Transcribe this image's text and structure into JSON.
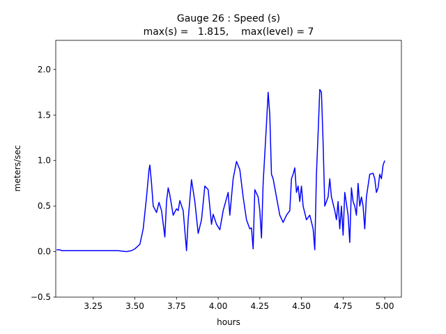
{
  "chart_data": {
    "type": "line",
    "title": "Gauge 26 : Speed (s)",
    "subtitle": "max(s) =   1.815,    max(level) = 7",
    "xlabel": "hours",
    "ylabel": "meters/sec",
    "xlim": [
      3.025,
      5.1
    ],
    "ylim": [
      -0.5,
      2.32
    ],
    "xticks": [
      3.25,
      {
        "value": 3.5,
        "label": "3.50"
      },
      3.75,
      {
        "value": 4,
        "label": "4.00"
      },
      4.25,
      {
        "value": 4.5,
        "label": "4.50"
      },
      4.75,
      {
        "value": 5,
        "label": "5.00"
      }
    ],
    "yticks": [
      {
        "value": -0.5,
        "label": "−0.5"
      },
      {
        "value": 0,
        "label": "0.0"
      },
      0.5,
      {
        "value": 1,
        "label": "1.0"
      },
      1.5,
      {
        "value": 2,
        "label": "2.0"
      }
    ],
    "grid": false,
    "series": [
      {
        "color": "#0000ff",
        "x": [
          3.03,
          3.05,
          3.06,
          3.1,
          3.15,
          3.2,
          3.25,
          3.3,
          3.35,
          3.4,
          3.45,
          3.48,
          3.5,
          3.53,
          3.55,
          3.57,
          3.585,
          3.59,
          3.6,
          3.61,
          3.63,
          3.645,
          3.66,
          3.68,
          3.69,
          3.7,
          3.71,
          3.73,
          3.75,
          3.76,
          3.77,
          3.79,
          3.81,
          3.82,
          3.84,
          3.86,
          3.88,
          3.9,
          3.92,
          3.94,
          3.96,
          3.97,
          3.99,
          4.01,
          4.03,
          4.06,
          4.07,
          4.09,
          4.11,
          4.13,
          4.15,
          4.17,
          4.19,
          4.2,
          4.21,
          4.22,
          4.24,
          4.25,
          4.26,
          4.27,
          4.29,
          4.3,
          4.31,
          4.32,
          4.33,
          4.35,
          4.37,
          4.39,
          4.41,
          4.43,
          4.44,
          4.45,
          4.46,
          4.47,
          4.48,
          4.49,
          4.5,
          4.51,
          4.53,
          4.55,
          4.57,
          4.58,
          4.59,
          4.6,
          4.61,
          4.62,
          4.63,
          4.64,
          4.66,
          4.67,
          4.68,
          4.7,
          4.71,
          4.72,
          4.73,
          4.74,
          4.75,
          4.76,
          4.78,
          4.79,
          4.8,
          4.81,
          4.82,
          4.83,
          4.84,
          4.85,
          4.86,
          4.87,
          4.88,
          4.89,
          4.91,
          4.93,
          4.94,
          4.95,
          4.96,
          4.97,
          4.98,
          4.99,
          5.0
        ],
        "values": [
          0.02,
          0.02,
          0.01,
          0.01,
          0.01,
          0.01,
          0.01,
          0.01,
          0.01,
          0.01,
          0.0,
          0.01,
          0.03,
          0.08,
          0.25,
          0.6,
          0.9,
          0.95,
          0.75,
          0.5,
          0.43,
          0.54,
          0.45,
          0.16,
          0.55,
          0.7,
          0.62,
          0.4,
          0.47,
          0.45,
          0.56,
          0.45,
          0.01,
          0.35,
          0.79,
          0.55,
          0.2,
          0.35,
          0.72,
          0.68,
          0.3,
          0.41,
          0.3,
          0.24,
          0.45,
          0.65,
          0.4,
          0.8,
          0.99,
          0.9,
          0.6,
          0.35,
          0.25,
          0.26,
          0.03,
          0.68,
          0.6,
          0.45,
          0.15,
          0.75,
          1.4,
          1.75,
          1.5,
          0.85,
          0.8,
          0.6,
          0.4,
          0.32,
          0.4,
          0.45,
          0.8,
          0.85,
          0.92,
          0.65,
          0.72,
          0.55,
          0.72,
          0.5,
          0.35,
          0.4,
          0.25,
          0.02,
          0.85,
          1.3,
          1.78,
          1.75,
          1.2,
          0.5,
          0.6,
          0.8,
          0.6,
          0.45,
          0.35,
          0.55,
          0.25,
          0.5,
          0.18,
          0.65,
          0.4,
          0.1,
          0.7,
          0.55,
          0.5,
          0.4,
          0.75,
          0.5,
          0.6,
          0.5,
          0.25,
          0.6,
          0.85,
          0.86,
          0.8,
          0.65,
          0.7,
          0.85,
          0.8,
          0.95,
          1.0
        ]
      }
    ]
  }
}
